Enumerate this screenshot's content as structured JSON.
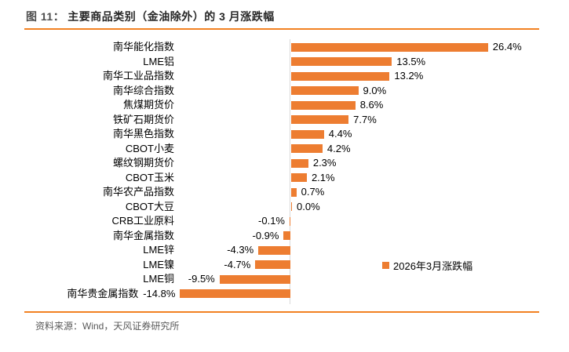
{
  "figure": {
    "title_prefix": "图 11：",
    "title": "主要商品类别（金油除外）的 3 月涨跌幅",
    "source": "资料来源：Wind，天风证券研究所"
  },
  "legend": {
    "label": "2026年3月涨跌幅"
  },
  "colors": {
    "bar": "#ED7D31",
    "rule": "#F28122",
    "axis_line": "#D9D9D9",
    "title_text": "#262626",
    "source_text": "#595959",
    "label_text": "#000000"
  },
  "chart_data": {
    "type": "bar",
    "orientation": "horizontal",
    "title": "主要商品类别（金油除外）的 3 月涨跌幅",
    "series_name": "2026年3月涨跌幅",
    "categories": [
      "南华能化指数",
      "LME铝",
      "南华工业品指数",
      "南华综合指数",
      "焦煤期货价",
      "铁矿石期货价",
      "南华黑色指数",
      "CBOT小麦",
      "螺纹钢期货价",
      "CBOT玉米",
      "南华农产品指数",
      "CBOT大豆",
      "CRB工业原料",
      "南华金属指数",
      "LME锌",
      "LME镍",
      "LME铜",
      "南华贵金属指数"
    ],
    "values": [
      26.4,
      13.5,
      13.2,
      9.0,
      8.6,
      7.7,
      4.4,
      4.2,
      2.3,
      2.1,
      0.7,
      0.0,
      -0.1,
      -0.9,
      -4.3,
      -4.7,
      -9.5,
      -14.8
    ],
    "value_labels": [
      "26.4%",
      "13.5%",
      "13.2%",
      "9.0%",
      "8.6%",
      "7.7%",
      "4.4%",
      "4.2%",
      "2.3%",
      "2.1%",
      "0.7%",
      "0.0%",
      "-0.1%",
      "-0.9%",
      "-4.3%",
      "-4.7%",
      "-9.5%",
      "-14.8%"
    ],
    "xlim": [
      -16,
      28
    ],
    "grid": false,
    "data_labels": "outside-end",
    "legend_position": "inside-right-middle",
    "xlabel": "",
    "ylabel": ""
  }
}
